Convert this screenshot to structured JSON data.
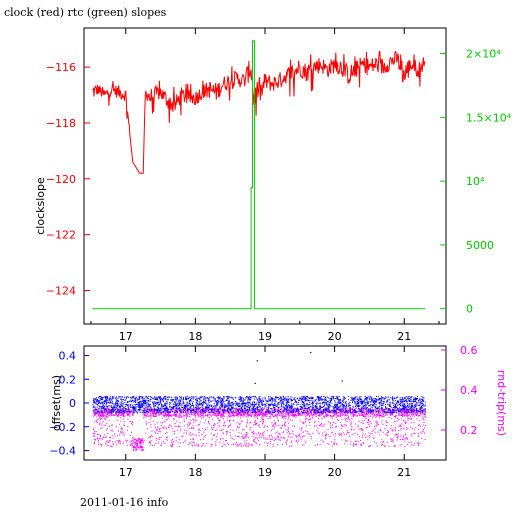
{
  "page": {
    "title": "clock (red) rtc (green) slopes",
    "footer": "2011-01-16 info"
  },
  "chart_data": [
    {
      "type": "line",
      "title": "clock (red) rtc (green) slopes",
      "ylabel": "clockslope",
      "xlabel": "",
      "xlim": [
        16.4,
        21.6
      ],
      "x_ticks": [
        17,
        18,
        19,
        20,
        21
      ],
      "ylim": [
        -125.2,
        -114.6
      ],
      "y_ticks": [
        -116,
        -118,
        -120,
        -122,
        -124
      ],
      "y2lim": [
        -1200,
        22000
      ],
      "y2_ticks": [
        {
          "value": 0,
          "label": "0"
        },
        {
          "value": 5000,
          "label": "5000"
        },
        {
          "value": 10000,
          "label": "10⁴"
        },
        {
          "value": 15000,
          "label": "1.5×10⁴"
        },
        {
          "value": 20000,
          "label": "2×10⁴"
        }
      ],
      "grid": false,
      "series": [
        {
          "axis": "left",
          "color": "#ff0000",
          "x": [
            16.52,
            16.6,
            16.7,
            16.8,
            16.9,
            17.0,
            17.1,
            17.2,
            17.25,
            17.28,
            17.3,
            17.35,
            17.4,
            17.5,
            17.6,
            17.7,
            17.8,
            17.9,
            18.0,
            18.1,
            18.2,
            18.3,
            18.4,
            18.5,
            18.6,
            18.7,
            18.8,
            18.84,
            18.88,
            18.95,
            19.0,
            19.1,
            19.2,
            19.3,
            19.4,
            19.5,
            19.6,
            19.7,
            19.8,
            19.9,
            20.0,
            20.1,
            20.2,
            20.3,
            20.4,
            20.5,
            20.6,
            20.7,
            20.8,
            20.9,
            21.0,
            21.1,
            21.2,
            21.3
          ],
          "y": [
            -116.9,
            -116.8,
            -117.0,
            -116.8,
            -116.9,
            -117.0,
            -119.4,
            -119.8,
            -119.8,
            -117.0,
            -116.9,
            -117.1,
            -117.0,
            -116.9,
            -117.2,
            -117.4,
            -117.0,
            -117.1,
            -117.1,
            -116.9,
            -116.8,
            -116.9,
            -116.6,
            -116.5,
            -116.4,
            -116.5,
            -116.0,
            -117.2,
            -116.8,
            -116.9,
            -116.5,
            -116.6,
            -116.5,
            -116.3,
            -116.2,
            -116.0,
            -116.2,
            -116.0,
            -115.9,
            -116.1,
            -115.9,
            -116.0,
            -116.3,
            -116.1,
            -115.9,
            -116.0,
            -115.9,
            -116.0,
            -115.8,
            -115.7,
            -116.3,
            -115.9,
            -116.1,
            -115.8
          ],
          "noise_low": [
            -117.7,
            -117.3,
            -117.5,
            -117.3,
            -117.5,
            -117.5,
            -119.6,
            -119.9,
            -119.9,
            -117.6,
            -117.4,
            -117.8,
            -117.6,
            -117.6,
            -118.0,
            -118.0,
            -117.7,
            -117.7,
            -117.8,
            -117.5,
            -117.6,
            -117.6,
            -117.2,
            -117.2,
            -117.1,
            -117.2,
            -116.9,
            -117.9,
            -117.7,
            -118.2,
            -117.3,
            -117.3,
            -117.1,
            -117.0,
            -117.1,
            -116.8,
            -117.0,
            -116.8,
            -116.6,
            -116.8,
            -116.7,
            -116.8,
            -117.2,
            -116.9,
            -116.6,
            -116.8,
            -116.7,
            -116.8,
            -116.5,
            -116.6,
            -117.8,
            -116.6,
            -116.8,
            -116.4
          ],
          "noise_high": [
            -116.5,
            -116.4,
            -116.6,
            -116.5,
            -116.5,
            -116.6,
            -119.2,
            -119.7,
            -119.7,
            -116.5,
            -116.3,
            -116.4,
            -116.4,
            -116.5,
            -116.8,
            -116.7,
            -116.6,
            -116.6,
            -116.6,
            -116.5,
            -116.3,
            -116.2,
            -116.1,
            -116.0,
            -115.9,
            -116.0,
            -115.2,
            -116.6,
            -116.3,
            -116.4,
            -116.0,
            -116.1,
            -115.9,
            -115.8,
            -115.7,
            -115.5,
            -115.6,
            -115.5,
            -115.4,
            -115.6,
            -115.5,
            -115.4,
            -115.8,
            -115.6,
            -115.4,
            -115.5,
            -115.4,
            -115.5,
            -115.3,
            -115.4,
            -115.7,
            -115.5,
            -115.6,
            -115.4
          ]
        },
        {
          "axis": "right",
          "color": "#00cc00",
          "x": [
            16.52,
            18.8,
            18.8,
            18.82,
            18.82,
            18.85,
            18.85,
            21.3
          ],
          "y": [
            0,
            0,
            9500,
            9500,
            21000,
            21000,
            0,
            0
          ]
        }
      ]
    },
    {
      "type": "scatter",
      "ylabel": "offset(ms)",
      "y2label": "rnd-trip(ms)",
      "xlim": [
        16.4,
        21.6
      ],
      "x_ticks": [
        17,
        18,
        19,
        20,
        21
      ],
      "ylim": [
        -0.48,
        0.48
      ],
      "y_ticks": [
        0.4,
        0.2,
        0,
        -0.2,
        -0.4
      ],
      "y2lim": [
        0.05,
        0.62
      ],
      "y2_ticks": [
        0.6,
        0.4,
        0.2
      ],
      "grid": false,
      "series": [
        {
          "axis": "left",
          "color": "#0000ff",
          "x_range": [
            16.52,
            21.3
          ],
          "band": [
            -0.08,
            0.06
          ],
          "outliers": [
            {
              "x": 18.88,
              "y": 0.36
            },
            {
              "x": 19.65,
              "y": 0.43
            },
            {
              "x": 18.85,
              "y": 0.17
            },
            {
              "x": 20.1,
              "y": 0.19
            }
          ]
        },
        {
          "axis": "right",
          "color": "#ff00ff",
          "x_range": [
            16.52,
            21.3
          ],
          "band": [
            0.12,
            0.3
          ],
          "cluster": {
            "x": [
              17.1,
              17.25
            ],
            "band": [
              0.1,
              0.16
            ]
          }
        }
      ]
    }
  ]
}
